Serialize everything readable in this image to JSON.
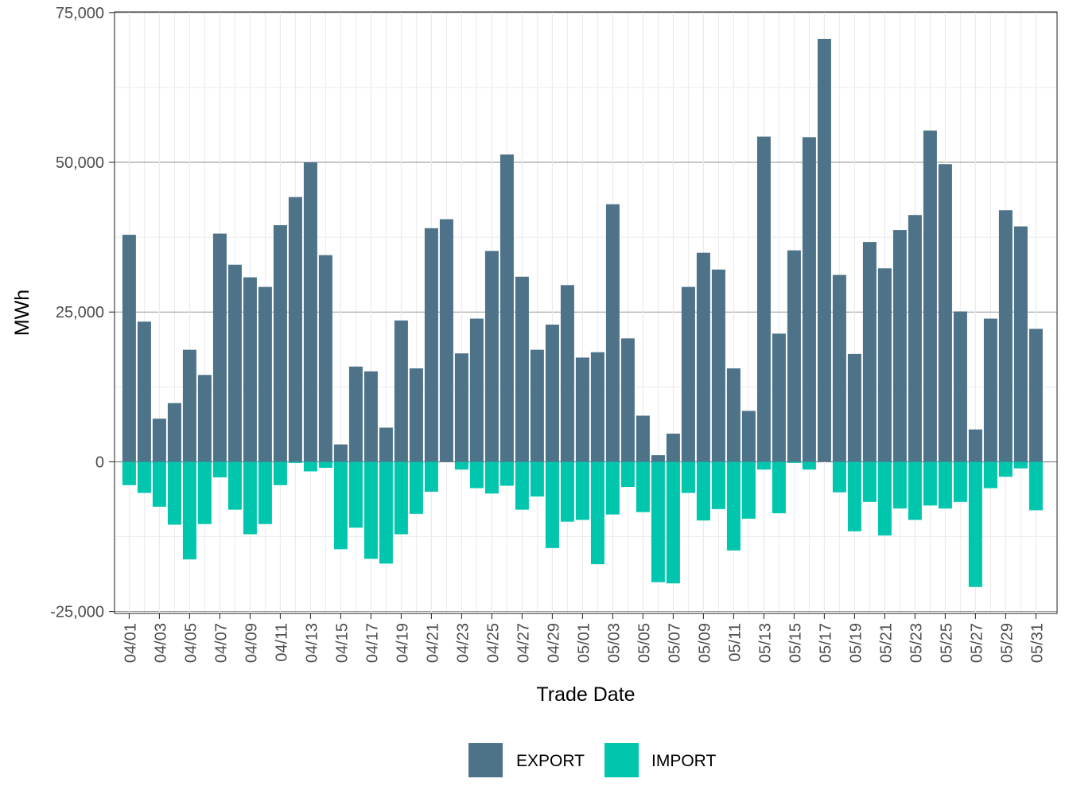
{
  "chart_data": {
    "type": "bar",
    "stacked": true,
    "xlabel": "Trade Date",
    "ylabel": "MWh",
    "ylim": [
      -25000,
      75000
    ],
    "yticks": [
      -25000,
      0,
      25000,
      50000,
      75000
    ],
    "ytick_labels": [
      "-25,000",
      "0",
      "25,000",
      "50,000",
      "75,000"
    ],
    "grid": true,
    "legend_position": "bottom",
    "categories": [
      "04/01",
      "04/02",
      "04/03",
      "04/04",
      "04/05",
      "04/06",
      "04/07",
      "04/08",
      "04/09",
      "04/10",
      "04/11",
      "04/12",
      "04/13",
      "04/14",
      "04/15",
      "04/16",
      "04/17",
      "04/18",
      "04/19",
      "04/20",
      "04/21",
      "04/22",
      "04/23",
      "04/24",
      "04/25",
      "04/26",
      "04/27",
      "04/28",
      "04/29",
      "04/30",
      "05/01",
      "05/02",
      "05/03",
      "05/04",
      "05/05",
      "05/06",
      "05/07",
      "05/08",
      "05/09",
      "05/10",
      "05/11",
      "05/12",
      "05/13",
      "05/14",
      "05/15",
      "05/16",
      "05/17",
      "05/18",
      "05/19",
      "05/20",
      "05/21",
      "05/22",
      "05/23",
      "05/24",
      "05/25",
      "05/26",
      "05/27",
      "05/28",
      "05/29",
      "05/30",
      "05/31"
    ],
    "x_tick_labels": [
      "04/01",
      "04/03",
      "04/05",
      "04/07",
      "04/09",
      "04/11",
      "04/13",
      "04/15",
      "04/17",
      "04/19",
      "04/21",
      "04/23",
      "04/25",
      "04/27",
      "04/29",
      "05/01",
      "05/03",
      "05/05",
      "05/07",
      "05/09",
      "05/11",
      "05/13",
      "05/15",
      "05/17",
      "05/19",
      "05/21",
      "05/23",
      "05/25",
      "05/27",
      "05/29",
      "05/31"
    ],
    "series": [
      {
        "name": "EXPORT",
        "color": "#4e7389",
        "values": [
          37900,
          23400,
          7200,
          9800,
          18700,
          14500,
          38100,
          32900,
          30800,
          29200,
          39500,
          44200,
          50000,
          34500,
          2900,
          15900,
          15100,
          5700,
          23600,
          15600,
          39000,
          40500,
          18100,
          23900,
          35200,
          51300,
          30900,
          18700,
          22900,
          29500,
          17400,
          18300,
          43000,
          20600,
          7700,
          1100,
          4700,
          29200,
          34900,
          32100,
          15600,
          8500,
          54300,
          21400,
          35300,
          54200,
          70600,
          31200,
          18000,
          36700,
          32300,
          38700,
          41200,
          55300,
          49700,
          25100,
          5400,
          23900,
          42000,
          39300,
          22200
        ]
      },
      {
        "name": "IMPORT",
        "color": "#00c6ad",
        "values": [
          -3900,
          -5200,
          -7500,
          -10500,
          -16300,
          -10400,
          -2600,
          -8000,
          -12100,
          -10400,
          -3900,
          -200,
          -1600,
          -1000,
          -14600,
          -11000,
          -16200,
          -17000,
          -12100,
          -8700,
          -5000,
          0,
          -1300,
          -4400,
          -5300,
          -4000,
          -8000,
          -5800,
          -14400,
          -10000,
          -9700,
          -17100,
          -8800,
          -4200,
          -8400,
          -20100,
          -20300,
          -5200,
          -9800,
          -7900,
          -14800,
          -9500,
          -1300,
          -8600,
          -200,
          -1300,
          0,
          -5100,
          -11600,
          -6700,
          -12300,
          -7800,
          -9700,
          -7300,
          -7800,
          -6700,
          -20900,
          -4400,
          -2500,
          -1100,
          -8100
        ]
      }
    ]
  }
}
